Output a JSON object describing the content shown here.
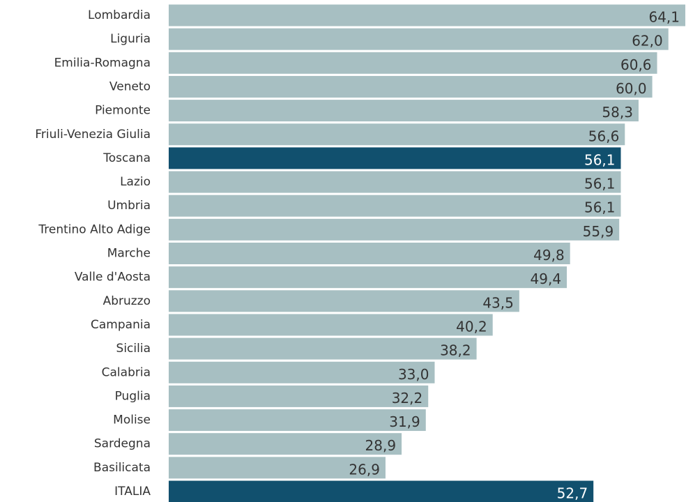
{
  "chart_data": {
    "type": "hbar",
    "categories": [
      "Lombardia",
      "Liguria",
      "Emilia-Romagna",
      "Veneto",
      "Piemonte",
      "Friuli-Venezia Giulia",
      "Toscana",
      "Lazio",
      "Umbria",
      "Trentino Alto Adige",
      "Marche",
      "Valle d'Aosta",
      "Abruzzo",
      "Campania",
      "Sicilia",
      "Calabria",
      "Puglia",
      "Molise",
      "Sardegna",
      "Basilicata",
      "ITALIA"
    ],
    "values": [
      64.1,
      62.0,
      60.6,
      60.0,
      58.3,
      56.6,
      56.1,
      56.1,
      56.1,
      55.9,
      49.8,
      49.4,
      43.5,
      40.2,
      38.2,
      33.0,
      32.2,
      31.9,
      28.9,
      26.9,
      52.7
    ],
    "value_labels": [
      "64,1",
      "62,0",
      "60,6",
      "60,0",
      "58,3",
      "56,6",
      "56,1",
      "56,1",
      "56,1",
      "55,9",
      "49,8",
      "49,4",
      "43,5",
      "40,2",
      "38,2",
      "33,0",
      "32,2",
      "31,9",
      "28,9",
      "26,9",
      "52,7"
    ],
    "colors": [
      "#a7bfc2",
      "#a7bfc2",
      "#a7bfc2",
      "#a7bfc2",
      "#a7bfc2",
      "#a7bfc2",
      "#11506e",
      "#a7bfc2",
      "#a7bfc2",
      "#a7bfc2",
      "#a7bfc2",
      "#a7bfc2",
      "#a7bfc2",
      "#a7bfc2",
      "#a7bfc2",
      "#a7bfc2",
      "#a7bfc2",
      "#a7bfc2",
      "#a7bfc2",
      "#a7bfc2",
      "#11506e"
    ]
  }
}
